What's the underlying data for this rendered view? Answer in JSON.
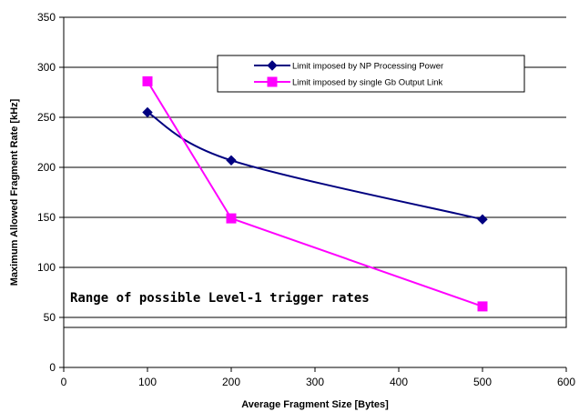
{
  "chart_data": {
    "type": "line",
    "xlabel": "Average Fragment Size [Bytes]",
    "ylabel": "Maximum Allowed Fragment Rate [kHz]",
    "xlim": [
      0,
      600
    ],
    "ylim": [
      0,
      350
    ],
    "x_ticks": [
      "0",
      "100",
      "200",
      "300",
      "400",
      "500",
      "600"
    ],
    "y_ticks": [
      "0",
      "50",
      "100",
      "150",
      "200",
      "250",
      "300",
      "350"
    ],
    "grid": "horizontal",
    "legend_position": "upper-right",
    "series": [
      {
        "name": "Limit imposed by NP Processing Power",
        "color": "#000080",
        "marker": "diamond",
        "smooth": true,
        "x": [
          100,
          200,
          500
        ],
        "y": [
          255,
          207,
          148
        ]
      },
      {
        "name": "Limit imposed by single Gb Output Link",
        "color": "#ff00ff",
        "marker": "square",
        "smooth": false,
        "x": [
          100,
          200,
          500
        ],
        "y": [
          286,
          149,
          61
        ]
      }
    ],
    "annotation": {
      "text": "Range of possible Level-1 trigger rates",
      "y_range": [
        40,
        100
      ]
    }
  }
}
